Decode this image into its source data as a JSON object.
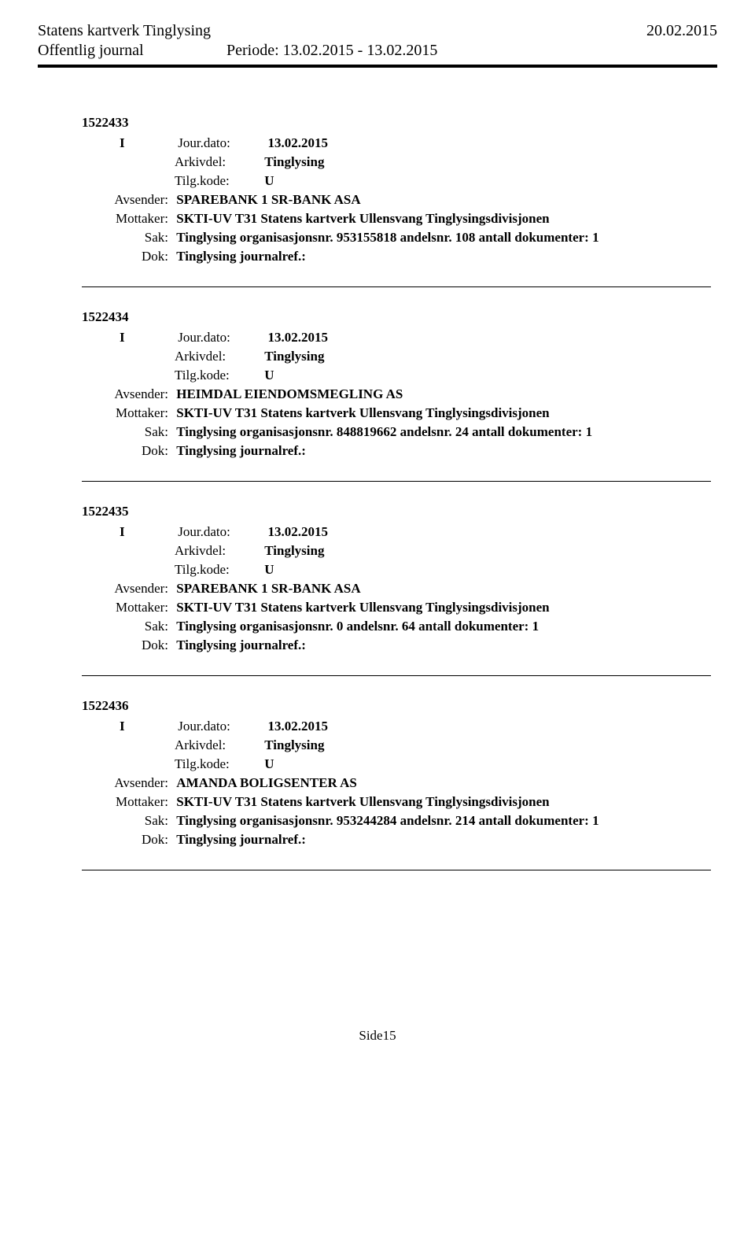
{
  "header": {
    "org": "Statens kartverk Tinglysing",
    "date": "20.02.2015",
    "journal": "Offentlig journal",
    "period_label": "Periode:",
    "period_value": "13.02.2015 - 13.02.2015"
  },
  "labels": {
    "jour": "Jour.dato:",
    "arkivdel": "Arkivdel:",
    "tilgkode": "Tilg.kode:",
    "avsender": "Avsender:",
    "mottaker": "Mottaker:",
    "sak": "Sak:",
    "dok": "Dok:"
  },
  "entries": [
    {
      "id": "1522433",
      "type": "I",
      "jour": "13.02.2015",
      "arkivdel": "Tinglysing",
      "tilgkode": "U",
      "avsender": "SPAREBANK 1 SR-BANK ASA",
      "mottaker": "SKTI-UV T31 Statens kartverk Ullensvang Tinglysingsdivisjonen",
      "sak": "Tinglysing organisasjonsnr. 953155818 andelsnr. 108 antall dokumenter: 1",
      "dok": "Tinglysing journalref.:"
    },
    {
      "id": "1522434",
      "type": "I",
      "jour": "13.02.2015",
      "arkivdel": "Tinglysing",
      "tilgkode": "U",
      "avsender": "HEIMDAL EIENDOMSMEGLING AS",
      "mottaker": "SKTI-UV T31 Statens kartverk Ullensvang Tinglysingsdivisjonen",
      "sak": "Tinglysing organisasjonsnr. 848819662 andelsnr. 24 antall dokumenter: 1",
      "dok": "Tinglysing journalref.:"
    },
    {
      "id": "1522435",
      "type": "I",
      "jour": "13.02.2015",
      "arkivdel": "Tinglysing",
      "tilgkode": "U",
      "avsender": "SPAREBANK 1 SR-BANK ASA",
      "mottaker": "SKTI-UV T31 Statens kartverk Ullensvang Tinglysingsdivisjonen",
      "sak": "Tinglysing organisasjonsnr. 0 andelsnr. 64 antall dokumenter: 1",
      "dok": "Tinglysing journalref.:"
    },
    {
      "id": "1522436",
      "type": "I",
      "jour": "13.02.2015",
      "arkivdel": "Tinglysing",
      "tilgkode": "U",
      "avsender": "AMANDA BOLIGSENTER AS",
      "mottaker": "SKTI-UV T31 Statens kartverk Ullensvang Tinglysingsdivisjonen",
      "sak": "Tinglysing organisasjonsnr. 953244284 andelsnr. 214 antall dokumenter: 1",
      "dok": "Tinglysing journalref.:"
    }
  ],
  "footer": {
    "page": "Side15"
  }
}
